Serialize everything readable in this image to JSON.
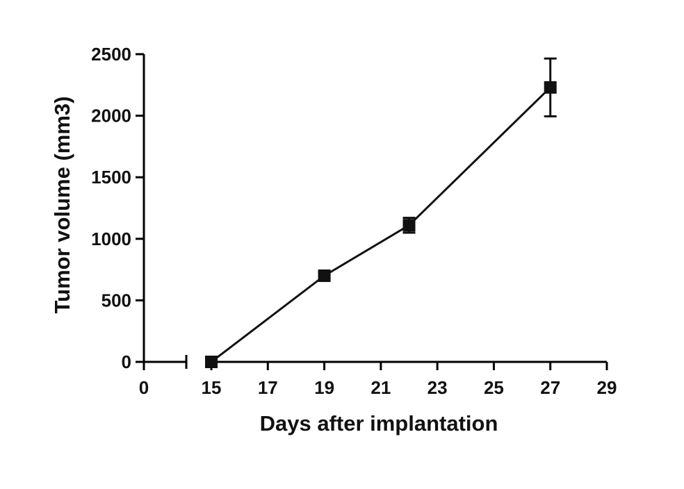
{
  "chart_data": {
    "type": "line",
    "xlabel": "Days after implantation",
    "ylabel": "Tumor volume (mm3)",
    "x_axis": {
      "segments": [
        [
          0,
          1.5
        ],
        [
          15,
          29
        ]
      ],
      "ticks": [
        0,
        15,
        17,
        19,
        21,
        23,
        25,
        27,
        29
      ],
      "tick_labels": [
        "0",
        "15",
        "17",
        "19",
        "21",
        "23",
        "25",
        "27",
        "29"
      ]
    },
    "y_axis": {
      "ylim": [
        0,
        2500
      ],
      "ticks": [
        0,
        500,
        1000,
        1500,
        2000,
        2500
      ],
      "tick_labels": [
        "0",
        "500",
        "1000",
        "1500",
        "2000",
        "2500"
      ]
    },
    "grid": false,
    "series": [
      {
        "x": [
          15,
          19,
          22,
          27
        ],
        "y": [
          0,
          700,
          1110,
          2230
        ],
        "error": [
          0,
          25,
          60,
          235
        ],
        "marker": "square",
        "color": "#111111"
      }
    ]
  }
}
